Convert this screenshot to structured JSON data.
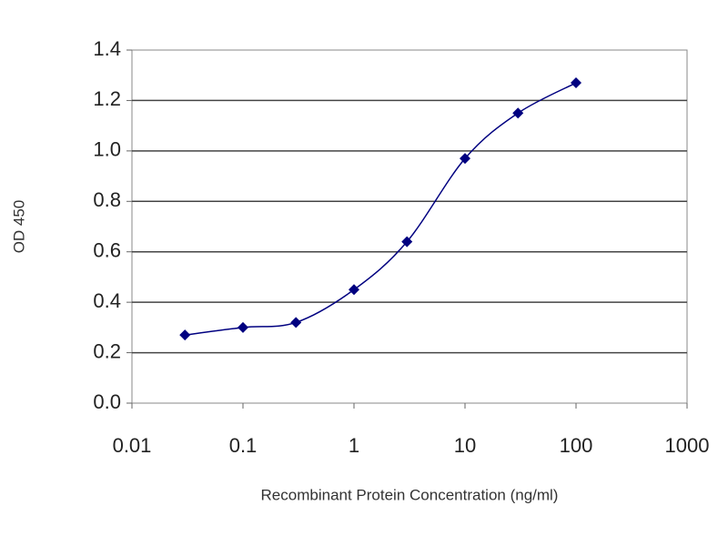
{
  "chart_data": {
    "type": "line",
    "x_label": "Recombinant Protein Concentration (ng/ml)",
    "y_label": "OD 450",
    "xscale": "log",
    "grid": true,
    "series": [
      {
        "color": "#000080",
        "x": [
          0.03,
          0.1,
          0.3,
          1,
          3,
          10,
          30,
          100
        ],
        "values": [
          0.27,
          0.3,
          0.32,
          0.45,
          0.64,
          0.97,
          1.15,
          1.27
        ]
      }
    ],
    "xlim": [
      0.01,
      1000
    ],
    "xticks": [
      0.01,
      0.1,
      1,
      10,
      100,
      1000
    ],
    "ylim": [
      0,
      1.4
    ],
    "yticks": [
      {
        "value": 0,
        "label": "0.0"
      },
      0.2,
      0.4,
      0.6,
      0.8,
      {
        "value": 1,
        "label": "1.0"
      },
      1.2,
      1.4
    ]
  }
}
